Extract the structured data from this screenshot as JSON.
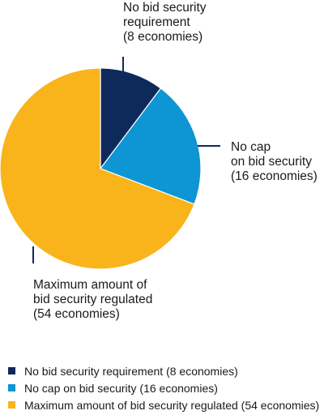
{
  "chart_data": {
    "type": "pie",
    "title": "",
    "slices": [
      {
        "name": "No bid security requirement",
        "value": 8,
        "color": "#0e2a5a",
        "callout_lines": [
          "No bid security",
          "requirement",
          "(8 economies)"
        ],
        "legend_label": "No bid security requirement (8 economies)"
      },
      {
        "name": "No cap on bid security",
        "value": 16,
        "color": "#0d95d4",
        "callout_lines": [
          "No cap",
          "on bid security",
          "(16 economies)"
        ],
        "legend_label": "No cap on bid security (16 economies)"
      },
      {
        "name": "Maximum amount of bid security regulated",
        "value": 54,
        "color": "#f8b41a",
        "callout_lines": [
          "Maximum amount of",
          "bid security regulated",
          "(54 economies)"
        ],
        "legend_label": "Maximum amount of bid security regulated (54 economies)"
      }
    ],
    "legend_position": "bottom-left"
  }
}
